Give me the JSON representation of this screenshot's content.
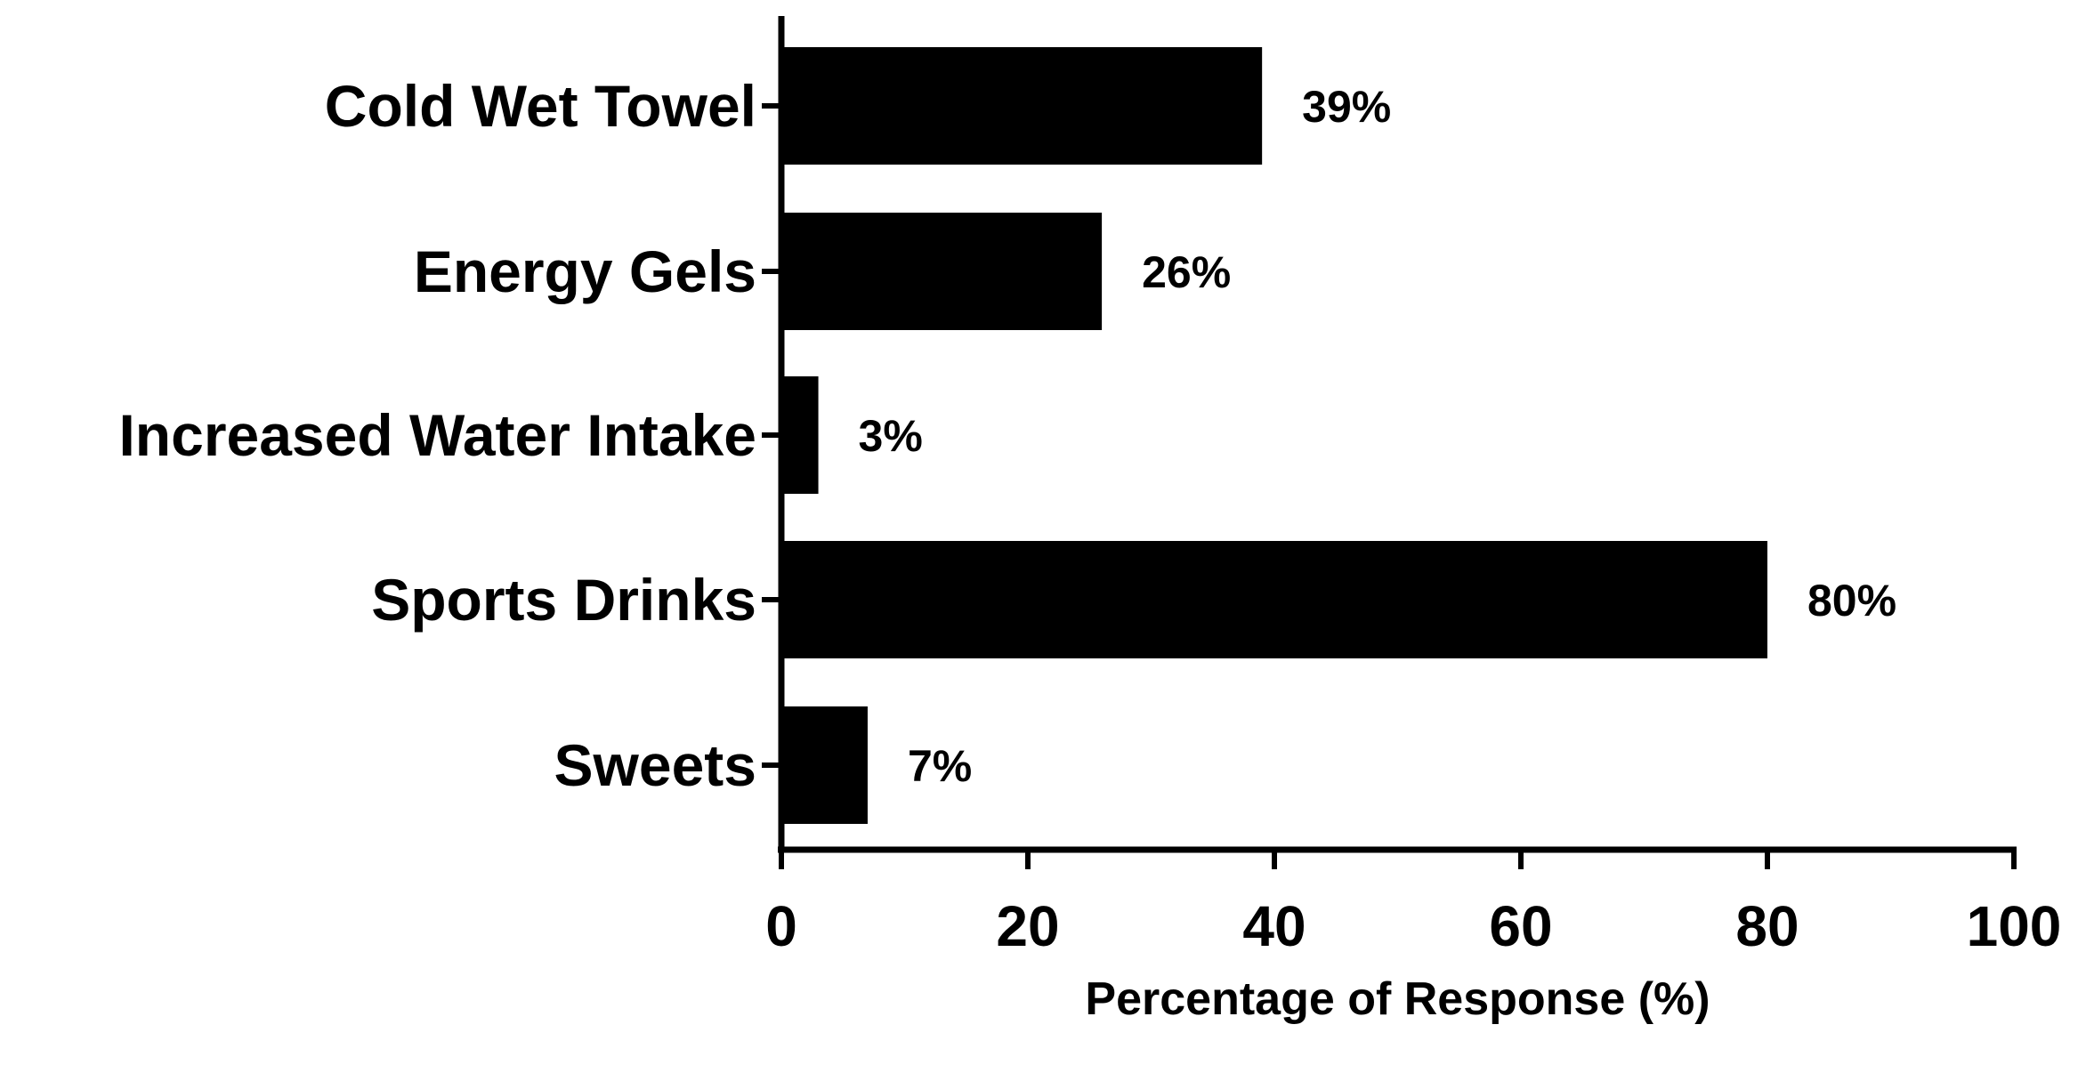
{
  "chart_data": {
    "type": "bar",
    "orientation": "horizontal",
    "categories": [
      "Cold Wet Towel",
      "Energy Gels",
      "Increased Water Intake",
      "Sports Drinks",
      "Sweets"
    ],
    "values": [
      39,
      26,
      3,
      80,
      7
    ],
    "data_labels": [
      "39%",
      "26%",
      "3%",
      "80%",
      "7%"
    ],
    "xlabel": "Percentage of Response (%)",
    "ylabel": "",
    "xlim": [
      0,
      100
    ],
    "xticks": [
      0,
      20,
      40,
      60,
      80,
      100
    ],
    "xtick_labels": [
      "0",
      "20",
      "40",
      "60",
      "80",
      "100"
    ],
    "grid": false,
    "bar_color": "#000000"
  }
}
